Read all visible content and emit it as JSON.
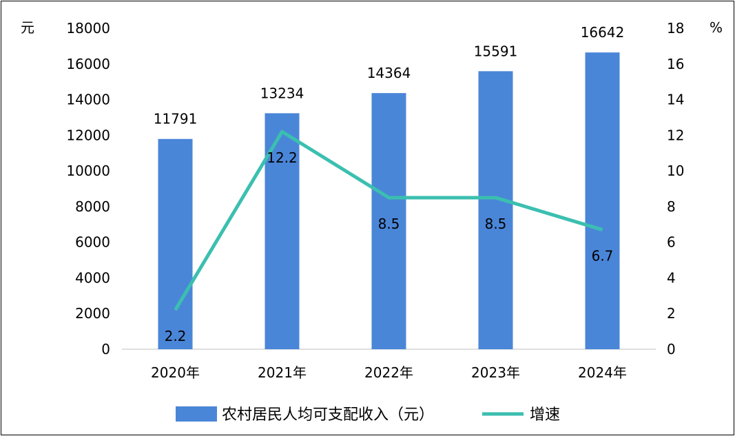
{
  "chart_data": {
    "type": "bar",
    "categories": [
      "2020年",
      "2021年",
      "2022年",
      "2023年",
      "2024年"
    ],
    "series": [
      {
        "name": "农村居民人均可支配收入（元）",
        "kind": "bar",
        "axis": "left",
        "values": [
          11791,
          13234,
          14364,
          15591,
          16642
        ],
        "color": "#4A86D8"
      },
      {
        "name": "增速",
        "kind": "line",
        "axis": "right",
        "values": [
          2.2,
          12.2,
          8.5,
          8.5,
          6.7
        ],
        "color": "#3BBFB0"
      }
    ],
    "y_left": {
      "unit": "元",
      "ylim": [
        0,
        18000
      ],
      "ticks": [
        "0",
        "2000",
        "4000",
        "6000",
        "8000",
        "10000",
        "12000",
        "14000",
        "16000",
        "18000"
      ]
    },
    "y_right": {
      "unit": "%",
      "ylim": [
        0,
        18
      ],
      "ticks": [
        "0",
        "2",
        "4",
        "6",
        "8",
        "10",
        "12",
        "14",
        "16",
        "18"
      ]
    },
    "legend_position": "bottom",
    "grid": false
  }
}
